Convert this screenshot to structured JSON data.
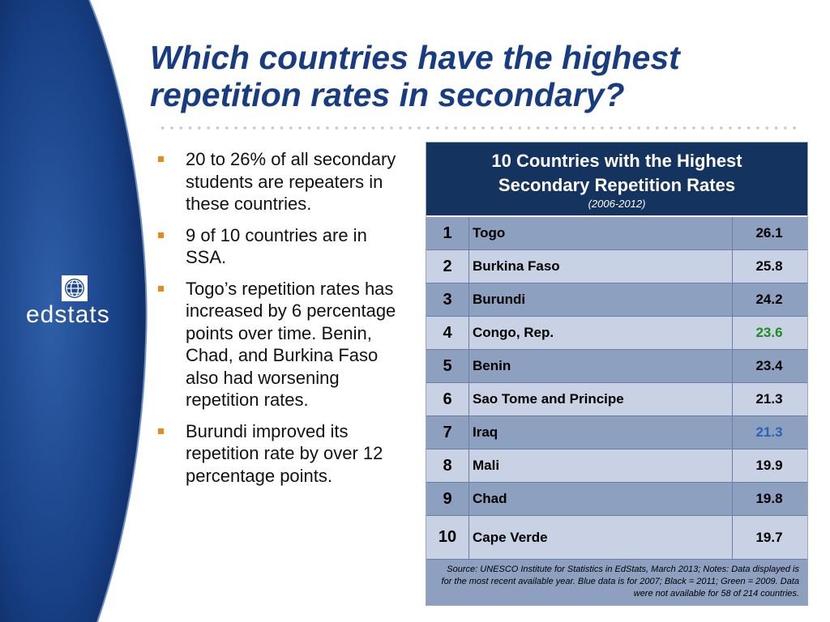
{
  "title": {
    "lines": [
      "Which countries have the highest",
      "repetition rates in secondary?"
    ]
  },
  "logo": {
    "text": "edstats"
  },
  "bullets": [
    "20 to 26% of all secondary students are repeaters in these countries.",
    "9 of 10 countries are in SSA.",
    "Togo’s repetition rates has increased by 6 percentage points over time. Benin, Chad, and Burkina Faso also had worsening repetition rates.",
    "Burundi improved its repetition rate by over 12 percentage points."
  ],
  "table": {
    "title": {
      "lines": [
        "10 Countries with the Highest",
        "Secondary Repetition Rates"
      ]
    },
    "subtitle": "(2006-2012)",
    "rows": [
      {
        "rank": 1,
        "country": "Togo",
        "value": 26.1,
        "color": "#000000"
      },
      {
        "rank": 2,
        "country": "Burkina Faso",
        "value": 25.8,
        "color": "#000000"
      },
      {
        "rank": 3,
        "country": "Burundi",
        "value": 24.2,
        "color": "#000000"
      },
      {
        "rank": 4,
        "country": "Congo, Rep.",
        "value": 23.6,
        "color": "#1e8c1e"
      },
      {
        "rank": 5,
        "country": "Benin",
        "value": 23.4,
        "color": "#000000"
      },
      {
        "rank": 6,
        "country": "Sao Tome and Principe",
        "value": 21.3,
        "color": "#000000"
      },
      {
        "rank": 7,
        "country": "Iraq",
        "value": 21.3,
        "color": "#2a62b8"
      },
      {
        "rank": 8,
        "country": "Mali",
        "value": 19.9,
        "color": "#000000"
      },
      {
        "rank": 9,
        "country": "Chad",
        "value": 19.8,
        "color": "#000000"
      },
      {
        "rank": 10,
        "country": "Cape Verde",
        "value": 19.7,
        "color": "#000000"
      }
    ],
    "source": "Source: UNESCO Institute for Statistics in EdStats, March 2013; Notes: Data displayed is for the most recent available year. Blue data is for 2007; Black = 2011; Green = 2009. Data were not available for 58 of 214 countries."
  }
}
